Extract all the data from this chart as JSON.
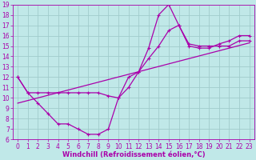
{
  "background_color": "#c0e8e8",
  "grid_color": "#a0cccc",
  "line_color": "#aa00aa",
  "xlabel": "Windchill (Refroidissement éolien,°C)",
  "xlim": [
    -0.5,
    23.5
  ],
  "ylim": [
    6,
    19
  ],
  "xticks": [
    0,
    1,
    2,
    3,
    4,
    5,
    6,
    7,
    8,
    9,
    10,
    11,
    12,
    13,
    14,
    15,
    16,
    17,
    18,
    19,
    20,
    21,
    22,
    23
  ],
  "yticks": [
    6,
    7,
    8,
    9,
    10,
    11,
    12,
    13,
    14,
    15,
    16,
    17,
    18,
    19
  ],
  "curve1_x": [
    0,
    1,
    2,
    3,
    4,
    5,
    6,
    7,
    8,
    9,
    10,
    11,
    12,
    13,
    14,
    15,
    16,
    17,
    18,
    19,
    20,
    21,
    22,
    23
  ],
  "curve1_y": [
    12.0,
    10.5,
    9.5,
    8.5,
    7.5,
    7.5,
    7.0,
    6.5,
    6.5,
    7.0,
    10.0,
    12.0,
    12.5,
    14.8,
    18.0,
    19.0,
    17.0,
    15.2,
    15.0,
    15.0,
    15.0,
    15.0,
    15.5,
    15.5
  ],
  "curve2_x": [
    0,
    1,
    2,
    3,
    4,
    5,
    6,
    7,
    8,
    9,
    10,
    11,
    12,
    13,
    14,
    15,
    16,
    17,
    18,
    19,
    20,
    21,
    22,
    23
  ],
  "curve2_y": [
    12.0,
    10.5,
    10.5,
    10.5,
    10.5,
    10.5,
    10.5,
    10.5,
    10.5,
    10.2,
    10.0,
    11.0,
    12.5,
    13.8,
    15.0,
    16.5,
    17.0,
    15.0,
    14.8,
    14.8,
    15.2,
    15.5,
    16.0,
    16.0
  ],
  "trend_x": [
    0,
    23
  ],
  "trend_y": [
    9.5,
    15.3
  ],
  "tick_fontsize": 5.5,
  "xlabel_fontsize": 6.0,
  "linewidth": 0.9,
  "marker_size": 2.5
}
